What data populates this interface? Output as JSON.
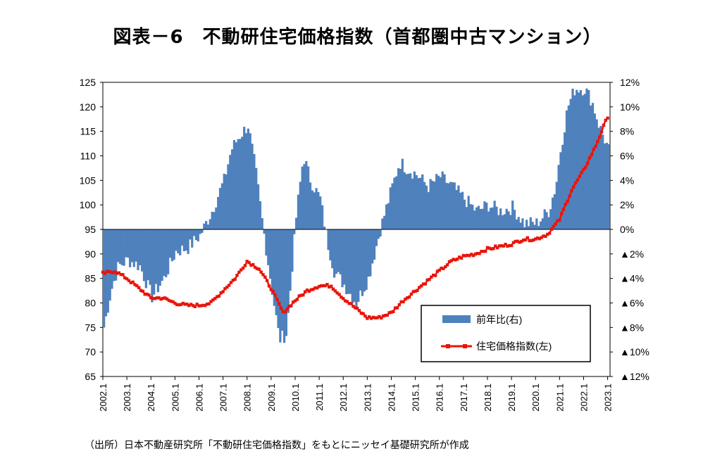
{
  "title": "図表－6　不動研住宅価格指数（首都圏中古マンション）",
  "source": "（出所）日本不動産研究所「不動研住宅価格指数」をもとにニッセイ基礎研究所が作成",
  "chart_data": {
    "type": "bar+line",
    "title": "図表－6　不動研住宅価格指数（首都圏中古マンション）",
    "left_axis": {
      "ylim": [
        65,
        125
      ],
      "ticks": [
        "125",
        "120",
        "115",
        "110",
        "105",
        "100",
        "95",
        "90",
        "85",
        "80",
        "75",
        "70",
        "65"
      ]
    },
    "right_axis": {
      "ylim": [
        -12,
        12
      ],
      "ticks": [
        "12%",
        "10%",
        "8%",
        "6%",
        "4%",
        "2%",
        "0%",
        "▲2%",
        "▲4%",
        "▲6%",
        "▲8%",
        "▲10%",
        "▲12%"
      ]
    },
    "x_ticks": [
      "2002.1",
      "2003.1",
      "2004.1",
      "2005.1",
      "2006.1",
      "2007.1",
      "2008.1",
      "2009.1",
      "2010.1",
      "2011.1",
      "2012.1",
      "2013.1",
      "2014.1",
      "2015.1",
      "2016.1",
      "2017.1",
      "2018.1",
      "2019.1",
      "2020.1",
      "2021.1",
      "2022.1",
      "2023.1"
    ],
    "legend": {
      "position": "bottom-right",
      "items": [
        {
          "label": "前年比(右)",
          "color": "#4F81BD",
          "kind": "bar"
        },
        {
          "label": "住宅価格指数(左)",
          "color": "#E8150B",
          "kind": "line"
        }
      ]
    },
    "series": [
      {
        "name": "住宅価格指数(左)",
        "axis": "left",
        "color": "#E8150B",
        "x": [
          2002.0,
          2002.5,
          2003.0,
          2003.5,
          2004.0,
          2004.5,
          2005.0,
          2005.5,
          2006.0,
          2006.5,
          2007.0,
          2007.5,
          2008.0,
          2008.5,
          2009.0,
          2009.5,
          2010.0,
          2010.5,
          2011.0,
          2011.5,
          2012.0,
          2012.5,
          2013.0,
          2013.5,
          2014.0,
          2014.5,
          2015.0,
          2015.5,
          2016.0,
          2016.5,
          2017.0,
          2017.5,
          2018.0,
          2018.5,
          2019.0,
          2019.5,
          2020.0,
          2020.5,
          2021.0,
          2021.5,
          2022.0,
          2022.5,
          2023.0
        ],
        "values": [
          86,
          86.5,
          85,
          83,
          81,
          81,
          80,
          79.5,
          79.5,
          80,
          82.5,
          85,
          88.5,
          87,
          83,
          78,
          80.5,
          82.5,
          83.5,
          83.5,
          81,
          79,
          77,
          77,
          78,
          80.5,
          82.5,
          84.5,
          86.5,
          88.5,
          89.5,
          90,
          91,
          91.5,
          92,
          93,
          93,
          94,
          97,
          103,
          107,
          112,
          118
        ]
      },
      {
        "name": "前年比(右)",
        "axis": "right",
        "color": "#4F81BD",
        "x": [
          2002.0,
          2002.3,
          2002.6,
          2003.0,
          2003.5,
          2004.0,
          2004.5,
          2005.0,
          2005.5,
          2006.0,
          2006.5,
          2007.0,
          2007.3,
          2007.6,
          2008.0,
          2008.3,
          2008.6,
          2009.0,
          2009.3,
          2009.6,
          2010.0,
          2010.3,
          2010.6,
          2011.0,
          2011.3,
          2011.6,
          2012.0,
          2012.5,
          2013.0,
          2013.5,
          2014.0,
          2014.3,
          2014.6,
          2015.0,
          2015.5,
          2016.0,
          2016.5,
          2017.0,
          2017.5,
          2018.0,
          2018.5,
          2019.0,
          2019.5,
          2020.0,
          2020.5,
          2020.8,
          2021.0,
          2021.3,
          2021.6,
          2022.0,
          2022.3,
          2022.6,
          2023.0
        ],
        "values": [
          -8,
          -5,
          -3,
          -2.5,
          -3,
          -5.5,
          -4,
          -1.8,
          -1.5,
          -0.5,
          1.5,
          4,
          6.5,
          7.5,
          8.5,
          5,
          0.5,
          -5,
          -9,
          -8.5,
          1,
          6,
          4,
          2.5,
          -1,
          -3.5,
          -4.5,
          -6,
          -4,
          0,
          3.5,
          5.5,
          5,
          4.5,
          3.5,
          4.3,
          3.5,
          2.5,
          1.5,
          2,
          1.5,
          1.8,
          0.5,
          0.5,
          1.5,
          3.5,
          6.5,
          10,
          11.5,
          11.5,
          10.5,
          8.5,
          6.5
        ]
      }
    ]
  }
}
